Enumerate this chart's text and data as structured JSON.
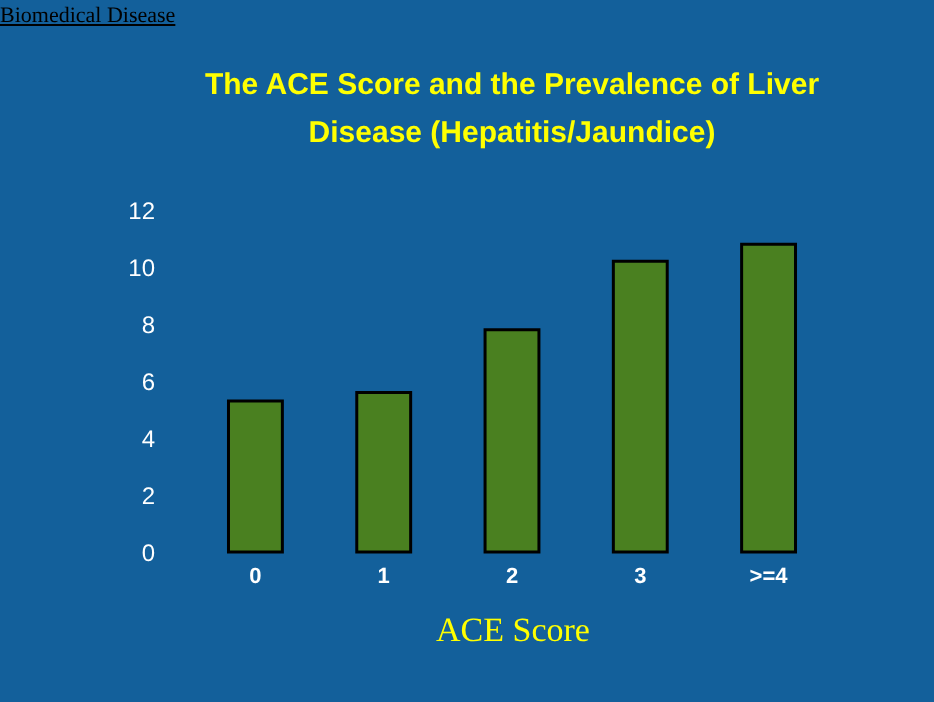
{
  "chart_data": {
    "type": "bar",
    "title": "The ACE Score and the Prevalence of Liver Disease (Hepatitis/Jaundice)",
    "annotations": [
      "Biomedical Disease"
    ],
    "xlabel": "ACE Score",
    "categories": [
      "0",
      "1",
      "2",
      "3",
      ">=4"
    ],
    "values": [
      5.3,
      5.6,
      7.8,
      10.2,
      10.8
    ],
    "color": "#4a8020",
    "ylim": [
      0,
      12
    ],
    "yticks": [
      0,
      2,
      4,
      6,
      8,
      10,
      12
    ],
    "grid": false
  }
}
